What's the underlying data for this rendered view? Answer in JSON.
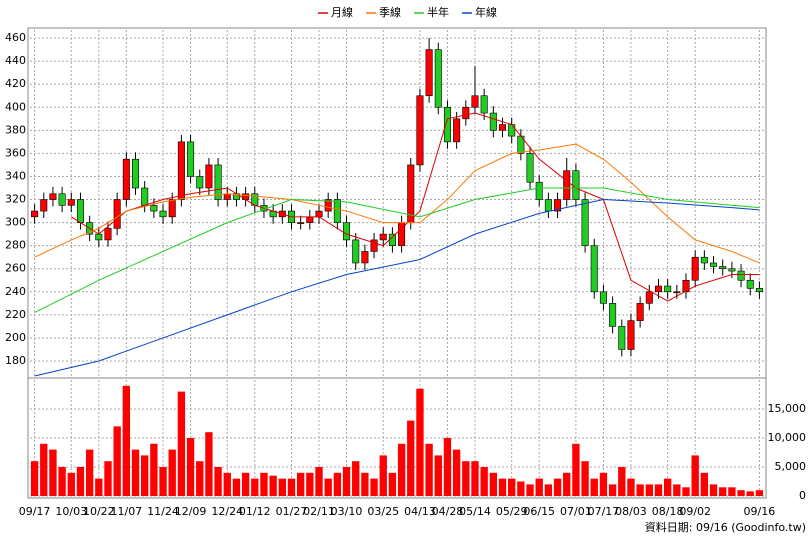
{
  "chart_data": {
    "type": "candlestick",
    "up_color": "#ff0000",
    "down_color": "#22cc22",
    "grid": true,
    "xlim": [
      -0.5,
      79.5
    ],
    "xticks": [
      {
        "value": 0,
        "label": "09/17"
      },
      {
        "value": 4,
        "label": "10/03"
      },
      {
        "value": 7,
        "label": "10/22"
      },
      {
        "value": 10,
        "label": "11/07"
      },
      {
        "value": 14,
        "label": "11/24"
      },
      {
        "value": 17,
        "label": "12/09"
      },
      {
        "value": 21,
        "label": "12/24"
      },
      {
        "value": 24,
        "label": "01/12"
      },
      {
        "value": 28,
        "label": "01/27"
      },
      {
        "value": 31,
        "label": "02/11"
      },
      {
        "value": 34,
        "label": "03/10"
      },
      {
        "value": 38,
        "label": "03/25"
      },
      {
        "value": 42,
        "label": "04/13"
      },
      {
        "value": 45,
        "label": "04/28"
      },
      {
        "value": 48,
        "label": "05/14"
      },
      {
        "value": 52,
        "label": "05/29"
      },
      {
        "value": 55,
        "label": "06/15"
      },
      {
        "value": 59,
        "label": "07/01"
      },
      {
        "value": 62,
        "label": "07/17"
      },
      {
        "value": 65,
        "label": "08/03"
      },
      {
        "value": 69,
        "label": "08/18"
      },
      {
        "value": 72,
        "label": "09/02"
      },
      {
        "value": 79,
        "label": "09/16"
      }
    ],
    "ylim": [
      167,
      467
    ],
    "yticks": [
      180,
      200,
      220,
      240,
      260,
      280,
      300,
      320,
      340,
      360,
      380,
      400,
      420,
      440,
      460
    ],
    "candles": [
      [
        305,
        316,
        299,
        310
      ],
      [
        310,
        326,
        304,
        320
      ],
      [
        320,
        331,
        314,
        325
      ],
      [
        325,
        331,
        309,
        315
      ],
      [
        315,
        326,
        309,
        320
      ],
      [
        320,
        326,
        294,
        300
      ],
      [
        300,
        306,
        284,
        290
      ],
      [
        290,
        296,
        279,
        285
      ],
      [
        285,
        301,
        279,
        295
      ],
      [
        295,
        326,
        289,
        320
      ],
      [
        320,
        361,
        314,
        355
      ],
      [
        355,
        361,
        324,
        330
      ],
      [
        330,
        336,
        309,
        315
      ],
      [
        315,
        321,
        304,
        310
      ],
      [
        310,
        316,
        299,
        305
      ],
      [
        305,
        326,
        299,
        320
      ],
      [
        320,
        376,
        314,
        370
      ],
      [
        370,
        376,
        334,
        340
      ],
      [
        340,
        346,
        324,
        330
      ],
      [
        330,
        356,
        324,
        350
      ],
      [
        350,
        356,
        314,
        320
      ],
      [
        320,
        331,
        314,
        325
      ],
      [
        325,
        331,
        314,
        320
      ],
      [
        320,
        331,
        314,
        325
      ],
      [
        325,
        331,
        309,
        315
      ],
      [
        315,
        321,
        304,
        310
      ],
      [
        310,
        316,
        299,
        305
      ],
      [
        305,
        316,
        299,
        310
      ],
      [
        310,
        316,
        294,
        300
      ],
      [
        300,
        306,
        294,
        300
      ],
      [
        300,
        311,
        294,
        305
      ],
      [
        305,
        316,
        299,
        310
      ],
      [
        310,
        326,
        304,
        320
      ],
      [
        320,
        326,
        294,
        300
      ],
      [
        300,
        306,
        279,
        285
      ],
      [
        285,
        291,
        259,
        265
      ],
      [
        265,
        281,
        259,
        275
      ],
      [
        275,
        291,
        269,
        285
      ],
      [
        285,
        296,
        279,
        290
      ],
      [
        290,
        296,
        274,
        280
      ],
      [
        280,
        306,
        274,
        300
      ],
      [
        300,
        356,
        294,
        350
      ],
      [
        350,
        416,
        344,
        410
      ],
      [
        410,
        460,
        404,
        450
      ],
      [
        450,
        456,
        394,
        400
      ],
      [
        400,
        406,
        364,
        370
      ],
      [
        370,
        396,
        364,
        390
      ],
      [
        390,
        406,
        384,
        400
      ],
      [
        400,
        436,
        394,
        410
      ],
      [
        410,
        416,
        389,
        395
      ],
      [
        395,
        401,
        374,
        380
      ],
      [
        380,
        391,
        374,
        385
      ],
      [
        385,
        391,
        369,
        375
      ],
      [
        375,
        381,
        354,
        360
      ],
      [
        360,
        366,
        329,
        335
      ],
      [
        335,
        341,
        314,
        320
      ],
      [
        320,
        326,
        304,
        310
      ],
      [
        310,
        326,
        304,
        320
      ],
      [
        320,
        356,
        314,
        345
      ],
      [
        345,
        351,
        314,
        320
      ],
      [
        320,
        326,
        274,
        280
      ],
      [
        280,
        286,
        234,
        240
      ],
      [
        240,
        246,
        224,
        230
      ],
      [
        230,
        236,
        204,
        210
      ],
      [
        210,
        216,
        184,
        190
      ],
      [
        190,
        221,
        184,
        215
      ],
      [
        215,
        236,
        209,
        230
      ],
      [
        230,
        246,
        224,
        240
      ],
      [
        240,
        251,
        234,
        245
      ],
      [
        245,
        251,
        234,
        240
      ],
      [
        240,
        246,
        234,
        240
      ],
      [
        240,
        256,
        234,
        250
      ],
      [
        250,
        276,
        244,
        270
      ],
      [
        270,
        276,
        259,
        265
      ],
      [
        265,
        271,
        256,
        262
      ],
      [
        262,
        268,
        254,
        260
      ],
      [
        260,
        266,
        252,
        258
      ],
      [
        258,
        264,
        244,
        250
      ],
      [
        250,
        256,
        237,
        243
      ],
      [
        243,
        249,
        234,
        240
      ]
    ],
    "series": [
      {
        "name": "月線",
        "color": "#dd0000",
        "x": [
          4,
          7,
          10,
          14,
          17,
          21,
          24,
          28,
          31,
          34,
          38,
          42,
          45,
          48,
          52,
          55,
          59,
          62,
          65,
          69,
          72,
          76,
          79
        ],
        "values": [
          305,
          290,
          310,
          320,
          325,
          330,
          315,
          305,
          305,
          290,
          280,
          310,
          390,
          395,
          385,
          355,
          330,
          320,
          250,
          232,
          245,
          255,
          255
        ]
      },
      {
        "name": "季線",
        "color": "#ff7700",
        "x": [
          0,
          4,
          7,
          10,
          14,
          17,
          21,
          24,
          28,
          31,
          34,
          38,
          42,
          45,
          48,
          52,
          55,
          59,
          62,
          65,
          69,
          72,
          76,
          79
        ],
        "values": [
          270,
          285,
          295,
          310,
          318,
          322,
          325,
          323,
          320,
          315,
          310,
          300,
          300,
          320,
          345,
          360,
          363,
          368,
          355,
          335,
          305,
          285,
          275,
          265
        ]
      },
      {
        "name": "半年",
        "color": "#22cc22",
        "x": [
          0,
          7,
          14,
          21,
          28,
          34,
          42,
          48,
          55,
          62,
          69,
          76,
          79
        ],
        "values": [
          222,
          250,
          275,
          300,
          320,
          318,
          305,
          320,
          330,
          330,
          320,
          315,
          313
        ]
      },
      {
        "name": "年線",
        "color": "#0044cc",
        "x": [
          0,
          7,
          14,
          21,
          28,
          34,
          42,
          48,
          55,
          62,
          69,
          76,
          79
        ],
        "values": [
          167,
          180,
          200,
          220,
          240,
          255,
          268,
          290,
          308,
          320,
          317,
          313,
          311
        ]
      }
    ],
    "volume": {
      "color": "#ff0000",
      "ylim": [
        0,
        20000
      ],
      "yticks": [
        0,
        {
          "value": 5000,
          "label": "5,000"
        },
        {
          "value": 10000,
          "label": "10,000"
        },
        {
          "value": 15000,
          "label": "15,000"
        }
      ],
      "values": [
        6000,
        9000,
        8000,
        5000,
        4000,
        5000,
        8000,
        3000,
        6000,
        12000,
        19000,
        8000,
        7000,
        9000,
        5000,
        8000,
        18000,
        10000,
        6000,
        11000,
        5000,
        4000,
        3000,
        4000,
        3000,
        4000,
        3500,
        3000,
        3000,
        4000,
        4000,
        5000,
        3000,
        4000,
        5000,
        6000,
        4000,
        3000,
        7000,
        4000,
        9000,
        13000,
        18500,
        9000,
        7000,
        10000,
        8000,
        6000,
        6000,
        5000,
        4000,
        3000,
        3000,
        2500,
        2000,
        3000,
        2000,
        3000,
        4000,
        9000,
        6000,
        3000,
        4000,
        2000,
        5000,
        3000,
        2000,
        2000,
        2000,
        3000,
        2000,
        1500,
        7000,
        4000,
        2000,
        1500,
        1500,
        1000,
        800,
        1000
      ]
    },
    "source_note": "資料日期: 09/16  (Goodinfo.tw)"
  }
}
